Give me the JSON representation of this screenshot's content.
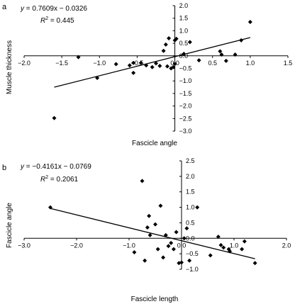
{
  "chart_data": [
    {
      "type": "scatter",
      "panel_label": "a",
      "equation_prefix": "y",
      "equation": " = 0.7609x − 0.0326",
      "r2_prefix": "R",
      "r2_value": " = 0.445",
      "xlabel": "Fascicle angle",
      "ylabel": "Muscle thickness",
      "xlim": [
        -2.0,
        1.5
      ],
      "ylim": [
        -3.0,
        2.0
      ],
      "xticks": [
        "−2.0",
        "−1.5",
        "−1.0",
        "−0.5",
        "0.0",
        "0.5",
        "1.0",
        "1.5"
      ],
      "xtick_values": [
        -2.0,
        -1.5,
        -1.0,
        -0.5,
        0.0,
        0.5,
        1.0,
        1.5
      ],
      "yticks": [
        "2.0",
        "1.5",
        "1.0",
        "0.5",
        "0.0",
        "−0.5",
        "−1.0",
        "−1.5",
        "−2.0",
        "−2.5",
        "−3.0"
      ],
      "ytick_values": [
        2.0,
        1.5,
        1.0,
        0.5,
        0.0,
        -0.5,
        -1.0,
        -1.5,
        -2.0,
        -2.5,
        -3.0
      ],
      "trendline": {
        "slope": 0.7609,
        "intercept": -0.0326,
        "x_range": [
          -1.6,
          1.0
        ]
      },
      "points": [
        [
          -1.6,
          -2.48
        ],
        [
          -1.28,
          -0.05
        ],
        [
          -1.03,
          -0.88
        ],
        [
          -0.78,
          -0.33
        ],
        [
          -0.6,
          -0.38
        ],
        [
          -0.55,
          -0.28
        ],
        [
          -0.55,
          -0.68
        ],
        [
          -0.45,
          -0.28
        ],
        [
          -0.38,
          -0.38
        ],
        [
          -0.3,
          -0.45
        ],
        [
          -0.25,
          -0.3
        ],
        [
          -0.2,
          -0.4
        ],
        [
          -0.15,
          0.2
        ],
        [
          -0.12,
          0.45
        ],
        [
          -0.1,
          -0.42
        ],
        [
          -0.08,
          0.7
        ],
        [
          -0.05,
          -0.5
        ],
        [
          -0.02,
          -0.45
        ],
        [
          0.0,
          -0.32
        ],
        [
          0.0,
          0.62
        ],
        [
          0.02,
          0.68
        ],
        [
          0.12,
          0.08
        ],
        [
          0.2,
          0.55
        ],
        [
          0.32,
          -0.18
        ],
        [
          0.6,
          0.18
        ],
        [
          0.62,
          0.05
        ],
        [
          0.68,
          -0.2
        ],
        [
          0.8,
          0.05
        ],
        [
          0.88,
          0.62
        ],
        [
          1.0,
          1.35
        ]
      ]
    },
    {
      "type": "scatter",
      "panel_label": "b",
      "equation_prefix": "y",
      "equation": " = −0.4161x − 0.0769",
      "r2_prefix": "R",
      "r2_value": " = 0.2061",
      "xlabel": "Fascicle length",
      "ylabel": "Fascicle angle",
      "xlim": [
        -3.0,
        2.0
      ],
      "ylim": [
        -1.0,
        2.5
      ],
      "xticks": [
        "−3.0",
        "−2.0",
        "−1.0",
        "0.0",
        "1.0",
        "2.0"
      ],
      "xtick_values": [
        -3.0,
        -2.0,
        -1.0,
        0.0,
        1.0,
        2.0
      ],
      "yticks": [
        "2.5",
        "2.0",
        "1.5",
        "1.0",
        "0.5",
        "0.0",
        "−0.5",
        "−1.0"
      ],
      "ytick_values": [
        2.5,
        2.0,
        1.5,
        1.0,
        0.5,
        0.0,
        -0.5,
        -1.0
      ],
      "trendline": {
        "slope": -0.4161,
        "intercept": -0.0769,
        "x_range": [
          -2.5,
          1.4
        ]
      },
      "points": [
        [
          -2.5,
          1.0
        ],
        [
          -0.9,
          -0.45
        ],
        [
          -0.75,
          1.85
        ],
        [
          -0.7,
          -0.72
        ],
        [
          -0.65,
          0.35
        ],
        [
          -0.62,
          0.72
        ],
        [
          -0.6,
          0.1
        ],
        [
          -0.5,
          0.45
        ],
        [
          -0.45,
          -0.35
        ],
        [
          -0.4,
          1.05
        ],
        [
          -0.35,
          -0.62
        ],
        [
          -0.3,
          0.1
        ],
        [
          -0.25,
          -0.25
        ],
        [
          -0.2,
          -0.15
        ],
        [
          -0.15,
          -0.35
        ],
        [
          -0.1,
          0.2
        ],
        [
          -0.05,
          -0.8
        ],
        [
          0.0,
          -0.78
        ],
        [
          0.05,
          0.0
        ],
        [
          0.1,
          0.32
        ],
        [
          0.15,
          -0.72
        ],
        [
          0.3,
          1.0
        ],
        [
          0.55,
          -0.55
        ],
        [
          0.7,
          0.05
        ],
        [
          0.75,
          -0.22
        ],
        [
          0.8,
          -0.3
        ],
        [
          0.9,
          -0.35
        ],
        [
          0.92,
          -0.42
        ],
        [
          1.15,
          -0.35
        ],
        [
          1.2,
          -0.1
        ],
        [
          1.4,
          -0.8
        ]
      ]
    }
  ]
}
